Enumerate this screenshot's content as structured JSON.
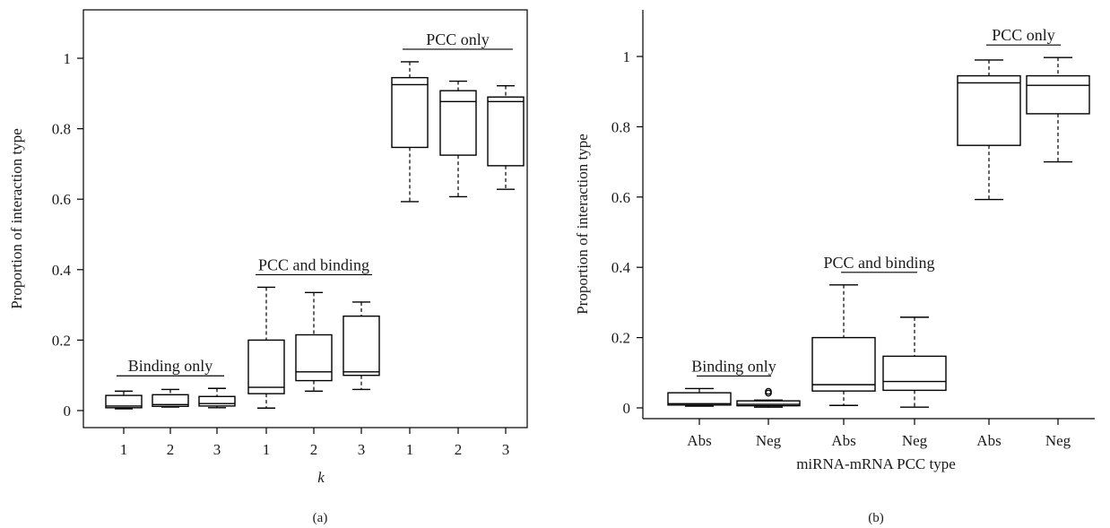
{
  "chart_data": [
    {
      "type": "box",
      "panel_label": "(a)",
      "xlabel": "k",
      "ylabel": "Proportion of interaction type",
      "ylim": [
        0,
        1.13
      ],
      "yticks": [
        "0",
        "0.2",
        "0.4",
        "0.6",
        "0.8",
        "1"
      ],
      "ytick_values": [
        0,
        0.2,
        0.4,
        0.6,
        0.8,
        1
      ],
      "categories": [
        "1",
        "2",
        "3",
        "1",
        "2",
        "3",
        "1",
        "2",
        "3"
      ],
      "groups": [
        {
          "label": "Binding only",
          "members": [
            0,
            1,
            2
          ]
        },
        {
          "label": "PCC and binding",
          "members": [
            3,
            4,
            5
          ]
        },
        {
          "label": "PCC only",
          "members": [
            6,
            7,
            8
          ]
        }
      ],
      "boxes": [
        {
          "min": 0.005,
          "q1": 0.008,
          "median": 0.013,
          "q3": 0.043,
          "max": 0.055
        },
        {
          "min": 0.01,
          "q1": 0.012,
          "median": 0.017,
          "q3": 0.045,
          "max": 0.06
        },
        {
          "min": 0.008,
          "q1": 0.013,
          "median": 0.02,
          "q3": 0.04,
          "max": 0.063
        },
        {
          "min": 0.007,
          "q1": 0.048,
          "median": 0.066,
          "q3": 0.2,
          "max": 0.35
        },
        {
          "min": 0.055,
          "q1": 0.085,
          "median": 0.11,
          "q3": 0.215,
          "max": 0.335
        },
        {
          "min": 0.06,
          "q1": 0.1,
          "median": 0.11,
          "q3": 0.268,
          "max": 0.308
        },
        {
          "min": 0.593,
          "q1": 0.747,
          "median": 0.925,
          "q3": 0.945,
          "max": 0.99
        },
        {
          "min": 0.607,
          "q1": 0.725,
          "median": 0.877,
          "q3": 0.908,
          "max": 0.935
        },
        {
          "min": 0.628,
          "q1": 0.695,
          "median": 0.877,
          "q3": 0.89,
          "max": 0.922
        }
      ]
    },
    {
      "type": "box",
      "panel_label": "(b)",
      "xlabel": "miRNA-mRNA PCC type",
      "ylabel": "Proportion of interaction type",
      "ylim": [
        0,
        1.15
      ],
      "yticks": [
        "0",
        "0.2",
        "0.4",
        "0.6",
        "0.8",
        "1"
      ],
      "ytick_values": [
        0,
        0.2,
        0.4,
        0.6,
        0.8,
        1
      ],
      "categories": [
        "Abs",
        "Neg",
        "Abs",
        "Neg",
        "Abs",
        "Neg"
      ],
      "groups": [
        {
          "label": "Binding only",
          "members": [
            0,
            1
          ]
        },
        {
          "label": "PCC and binding",
          "members": [
            2,
            3
          ]
        },
        {
          "label": "PCC only",
          "members": [
            4,
            5
          ]
        }
      ],
      "boxes": [
        {
          "min": 0.005,
          "q1": 0.008,
          "median": 0.012,
          "q3": 0.043,
          "max": 0.055
        },
        {
          "min": 0.002,
          "q1": 0.006,
          "median": 0.01,
          "q3": 0.02,
          "max": 0.022,
          "outliers": [
            0.042,
            0.047
          ]
        },
        {
          "min": 0.007,
          "q1": 0.048,
          "median": 0.066,
          "q3": 0.2,
          "max": 0.35
        },
        {
          "min": 0.002,
          "q1": 0.05,
          "median": 0.075,
          "q3": 0.147,
          "max": 0.258
        },
        {
          "min": 0.593,
          "q1": 0.747,
          "median": 0.925,
          "q3": 0.945,
          "max": 0.99
        },
        {
          "min": 0.7,
          "q1": 0.837,
          "median": 0.918,
          "q3": 0.945,
          "max": 0.997
        }
      ]
    }
  ]
}
